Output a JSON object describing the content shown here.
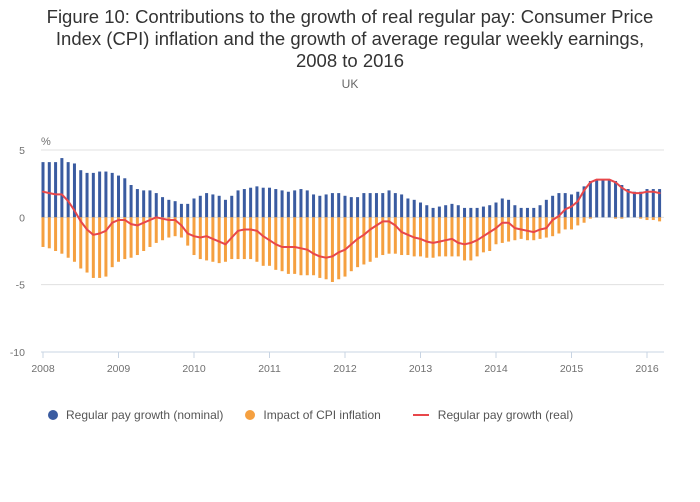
{
  "chart_data": {
    "type": "bar",
    "title": "Figure 10: Contributions to the growth of real regular pay: Consumer Price Index (CPI) inflation and the growth of average regular weekly earnings, 2008 to 2016",
    "title_lines": [
      "Figure 10: Contributions to the growth of real regular pay: Consumer Price",
      "Index (CPI) inflation and the growth of average regular weekly earnings,",
      "2008 to 2016"
    ],
    "subtitle": "UK",
    "xlabel": "",
    "ylabel": "%",
    "ylim": [
      -10,
      5
    ],
    "yticks": [
      5,
      0,
      -5,
      -10
    ],
    "ytick_labels": [
      "5",
      "0",
      "-5",
      "-10"
    ],
    "xtick_labels": [
      "2008",
      "2009",
      "2010",
      "2011",
      "2012",
      "2013",
      "2014",
      "2015",
      "2016"
    ],
    "x_start": "Jan 2008",
    "x_end": "Mar 2016",
    "x_frequency": "monthly",
    "grid": true,
    "legend_position": "bottom",
    "colors": {
      "nominal": "#3a5ba0",
      "cpi": "#f5a040",
      "real": "#e8474a",
      "grid": "#e0e0e0",
      "axis": "#c8d4e3"
    },
    "series": [
      {
        "name": "Regular pay growth (nominal)",
        "type": "bar",
        "values": [
          4.1,
          4.1,
          4.1,
          4.4,
          4.1,
          4.0,
          3.5,
          3.3,
          3.3,
          3.4,
          3.4,
          3.3,
          3.1,
          2.9,
          2.4,
          2.1,
          2.0,
          2.0,
          1.8,
          1.5,
          1.3,
          1.2,
          1.0,
          1.0,
          1.4,
          1.6,
          1.8,
          1.7,
          1.6,
          1.3,
          1.6,
          2.0,
          2.1,
          2.2,
          2.3,
          2.2,
          2.2,
          2.1,
          2.0,
          1.9,
          2.0,
          2.1,
          2.0,
          1.7,
          1.6,
          1.7,
          1.8,
          1.8,
          1.6,
          1.5,
          1.5,
          1.8,
          1.8,
          1.8,
          1.8,
          2.0,
          1.8,
          1.7,
          1.4,
          1.3,
          1.1,
          0.9,
          0.7,
          0.8,
          0.9,
          1.0,
          0.9,
          0.7,
          0.7,
          0.7,
          0.8,
          0.9,
          1.1,
          1.4,
          1.3,
          0.9,
          0.7,
          0.7,
          0.7,
          0.9,
          1.3,
          1.6,
          1.8,
          1.8,
          1.7,
          1.9,
          2.3,
          2.7,
          2.8,
          2.8,
          2.8,
          2.7,
          2.4,
          2.1,
          1.9,
          1.9,
          2.1,
          2.1,
          2.1
        ]
      },
      {
        "name": "Impact of CPI inflation",
        "type": "bar",
        "values": [
          -2.2,
          -2.3,
          -2.5,
          -2.7,
          -3.0,
          -3.3,
          -3.8,
          -4.1,
          -4.5,
          -4.5,
          -4.4,
          -3.7,
          -3.3,
          -3.1,
          -3.0,
          -2.8,
          -2.5,
          -2.2,
          -1.9,
          -1.7,
          -1.5,
          -1.4,
          -1.5,
          -2.1,
          -2.8,
          -3.1,
          -3.2,
          -3.3,
          -3.4,
          -3.3,
          -3.1,
          -3.1,
          -3.1,
          -3.1,
          -3.3,
          -3.6,
          -3.6,
          -3.9,
          -4.0,
          -4.2,
          -4.2,
          -4.3,
          -4.3,
          -4.3,
          -4.5,
          -4.6,
          -4.8,
          -4.6,
          -4.4,
          -4.0,
          -3.7,
          -3.5,
          -3.3,
          -3.0,
          -2.8,
          -2.7,
          -2.7,
          -2.8,
          -2.8,
          -2.9,
          -2.9,
          -3.0,
          -3.0,
          -2.9,
          -2.9,
          -2.9,
          -2.9,
          -3.2,
          -3.2,
          -2.9,
          -2.6,
          -2.5,
          -2.0,
          -1.9,
          -1.8,
          -1.7,
          -1.6,
          -1.7,
          -1.7,
          -1.6,
          -1.5,
          -1.4,
          -1.2,
          -0.9,
          -0.9,
          -0.6,
          -0.4,
          -0.1,
          0.0,
          0.0,
          0.0,
          -0.1,
          -0.1,
          0.0,
          0.0,
          -0.1,
          -0.2,
          -0.2,
          -0.3
        ]
      },
      {
        "name": "Regular pay growth (real)",
        "type": "line",
        "values": [
          1.9,
          1.8,
          1.7,
          1.7,
          1.2,
          0.5,
          -0.3,
          -0.9,
          -1.3,
          -1.2,
          -1.0,
          -0.4,
          -0.2,
          -0.2,
          -0.5,
          -0.6,
          -0.4,
          -0.2,
          0.0,
          -0.1,
          -0.2,
          -0.2,
          -0.6,
          -1.2,
          -1.4,
          -1.5,
          -1.4,
          -1.6,
          -1.8,
          -2.0,
          -1.5,
          -1.0,
          -0.9,
          -0.9,
          -1.0,
          -1.4,
          -1.7,
          -2.0,
          -2.2,
          -2.2,
          -2.2,
          -2.3,
          -2.4,
          -2.7,
          -2.9,
          -3.0,
          -2.9,
          -2.6,
          -2.4,
          -2.0,
          -1.6,
          -1.3,
          -0.9,
          -0.6,
          -0.3,
          -0.3,
          -0.6,
          -1.1,
          -1.3,
          -1.5,
          -1.6,
          -1.8,
          -1.9,
          -1.8,
          -1.7,
          -1.6,
          -1.9,
          -2.0,
          -1.9,
          -1.7,
          -1.4,
          -1.1,
          -0.8,
          -0.4,
          -0.4,
          -0.8,
          -0.9,
          -1.0,
          -1.1,
          -0.9,
          -0.8,
          -0.2,
          0.1,
          0.6,
          0.8,
          1.2,
          2.0,
          2.6,
          2.8,
          2.8,
          2.8,
          2.6,
          2.2,
          1.9,
          1.8,
          1.8,
          1.9,
          1.9,
          1.8
        ]
      }
    ]
  }
}
